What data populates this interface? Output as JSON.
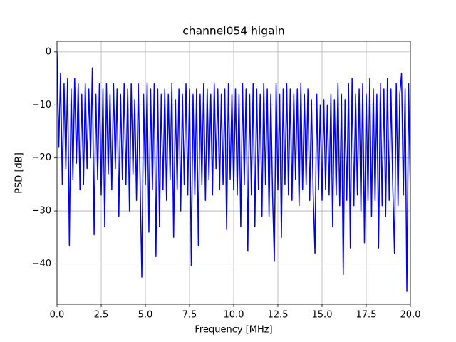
{
  "chart_data": {
    "type": "line",
    "title": "channel054 higain",
    "xlabel": "Frequency [MHz]",
    "ylabel": "PSD [dB]",
    "color": "#0000ff",
    "grid": true,
    "xlim": [
      0,
      20
    ],
    "ylim": [
      -47.6,
      2.0
    ],
    "xticks": [
      {
        "value": 0,
        "label": "0.0"
      },
      2.5,
      {
        "value": 5,
        "label": "5.0"
      },
      7.5,
      {
        "value": 10,
        "label": "10.0"
      },
      12.5,
      {
        "value": 15,
        "label": "15.0"
      },
      17.5,
      {
        "value": 20,
        "label": "20.0"
      }
    ],
    "yticks": [
      {
        "value": -40,
        "label": "−40"
      },
      {
        "value": -30,
        "label": "−30"
      },
      {
        "value": -20,
        "label": "−20"
      },
      {
        "value": -10,
        "label": "−10"
      },
      0
    ],
    "x": [
      0,
      0.1,
      0.2,
      0.3,
      0.4,
      0.5,
      0.6,
      0.7,
      0.8,
      0.9,
      1,
      1.1,
      1.2,
      1.3,
      1.4,
      1.5,
      1.6,
      1.7,
      1.8,
      1.9,
      2,
      2.1,
      2.2,
      2.3,
      2.4,
      2.5,
      2.6,
      2.7,
      2.8,
      2.9,
      3,
      3.1,
      3.2,
      3.3,
      3.4,
      3.5,
      3.6,
      3.7,
      3.8,
      3.9,
      4,
      4.1,
      4.2,
      4.3,
      4.4,
      4.5,
      4.6,
      4.7,
      4.8,
      4.9,
      5,
      5.1,
      5.2,
      5.3,
      5.4,
      5.5,
      5.6,
      5.7,
      5.8,
      5.9,
      6,
      6.1,
      6.2,
      6.3,
      6.4,
      6.5,
      6.6,
      6.7,
      6.8,
      6.9,
      7,
      7.1,
      7.2,
      7.3,
      7.4,
      7.5,
      7.6,
      7.7,
      7.8,
      7.9,
      8,
      8.1,
      8.2,
      8.3,
      8.4,
      8.5,
      8.6,
      8.7,
      8.8,
      8.9,
      9,
      9.1,
      9.2,
      9.3,
      9.4,
      9.5,
      9.6,
      9.7,
      9.8,
      9.9,
      10,
      10.1,
      10.2,
      10.3,
      10.4,
      10.5,
      10.6,
      10.7,
      10.8,
      10.9,
      11,
      11.1,
      11.2,
      11.3,
      11.4,
      11.5,
      11.6,
      11.7,
      11.8,
      11.9,
      12,
      12.1,
      12.2,
      12.3,
      12.4,
      12.5,
      12.6,
      12.7,
      12.8,
      12.9,
      13,
      13.1,
      13.2,
      13.3,
      13.4,
      13.5,
      13.6,
      13.7,
      13.8,
      13.9,
      14,
      14.1,
      14.2,
      14.3,
      14.4,
      14.5,
      14.6,
      14.7,
      14.8,
      14.9,
      15,
      15.1,
      15.2,
      15.3,
      15.4,
      15.5,
      15.6,
      15.7,
      15.8,
      15.9,
      16,
      16.1,
      16.2,
      16.3,
      16.4,
      16.5,
      16.6,
      16.7,
      16.8,
      16.9,
      17,
      17.1,
      17.2,
      17.3,
      17.4,
      17.5,
      17.6,
      17.7,
      17.8,
      17.9,
      18,
      18.1,
      18.2,
      18.3,
      18.4,
      18.5,
      18.6,
      18.7,
      18.8,
      18.9,
      19,
      19.1,
      19.2,
      19.3,
      19.4,
      19.5,
      19.6,
      19.7,
      19.8,
      19.9,
      20
    ],
    "values": [
      0,
      -18,
      -4,
      -25,
      -6,
      -22,
      -5,
      -36.5,
      -7,
      -24,
      -5,
      -21,
      -6,
      -26,
      -8,
      -25,
      -6,
      -22,
      -7,
      -20,
      -3,
      -34.5,
      -8,
      -24,
      -6,
      -27,
      -7,
      -33,
      -6,
      -23,
      -8,
      -26,
      -6,
      -22,
      -7,
      -31,
      -8,
      -24,
      -6,
      -25,
      -7,
      -30,
      -6,
      -23,
      -9,
      -28,
      -6,
      -24,
      -42.5,
      -8,
      -25,
      -6,
      -34,
      -7,
      -26,
      -6,
      -38.5,
      -7,
      -33,
      -8,
      -26,
      -7,
      -28,
      -8,
      -24,
      -6,
      -35,
      -9,
      -26,
      -7,
      -30,
      -8,
      -25,
      -6,
      -27,
      -7,
      -40.3,
      -8,
      -27,
      -7,
      -36.5,
      -8,
      -25,
      -6,
      -28,
      -7,
      -24,
      -8,
      -27,
      -6,
      -22,
      -7,
      -26,
      -8,
      -25,
      -7,
      -33.5,
      -6,
      -24,
      -8,
      -26,
      -7,
      -27,
      -8,
      -33,
      -6,
      -25,
      -7,
      -37.5,
      -8,
      -27,
      -6,
      -33,
      -7,
      -26,
      -8,
      -31,
      -6,
      -25,
      -7,
      -31,
      -8,
      -27,
      -39.5,
      -6,
      -26,
      -8,
      -35,
      -7,
      -25,
      -6,
      -27,
      -7,
      -28,
      -8,
      -24,
      -7,
      -29,
      -6,
      -26,
      -8,
      -25,
      -7,
      -28,
      -9,
      -27,
      -38,
      -8,
      -26,
      -10,
      -28,
      -9,
      -26,
      -10,
      -27,
      -8,
      -33,
      -9,
      -27,
      -6,
      -29,
      -8,
      -42,
      -9,
      -28,
      -6,
      -37,
      -5,
      -29,
      -8,
      -27,
      -7,
      -30,
      -6,
      -36,
      -8,
      -28,
      -5,
      -31,
      -7,
      -28,
      -8,
      -37,
      -6,
      -29,
      -7,
      -31,
      -5,
      -28,
      -7,
      -25,
      -38,
      -6,
      -29,
      -8,
      -4,
      -27,
      -7,
      -45.2,
      -6,
      -27
    ]
  }
}
